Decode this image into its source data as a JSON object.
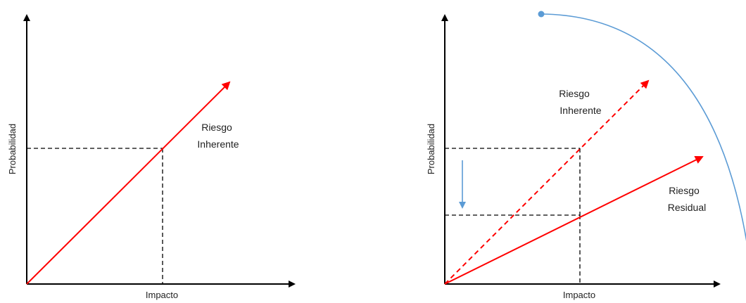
{
  "left_panel": {
    "x_axis_label": "Impacto",
    "y_axis_label": "Probabilidad",
    "arrow_label_line1": "Riesgo",
    "arrow_label_line2": "Inherente"
  },
  "right_panel": {
    "x_axis_label": "Impacto",
    "y_axis_label": "Probabilidad",
    "inherent_label_line1": "Riesgo",
    "inherent_label_line2": "Inherente",
    "residual_label_line1": "Riesgo",
    "residual_label_line2": "Residual"
  },
  "colors": {
    "axis": "#000000",
    "risk_arrow": "#ff0000",
    "indicator": "#5b9bd5",
    "guide_lines": "#000000"
  }
}
